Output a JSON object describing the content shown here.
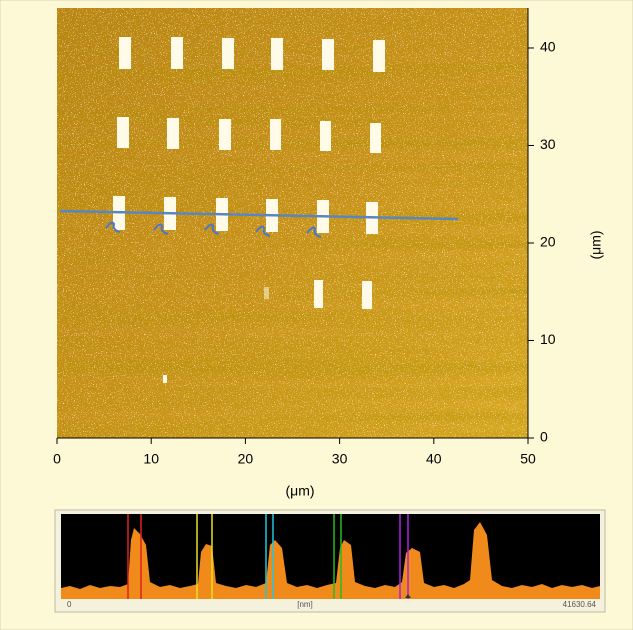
{
  "chart_data": {
    "type": "image",
    "xlabel": "(μm)",
    "ylabel": "(μm)",
    "xlim": [
      0,
      50
    ],
    "xticks": [
      0,
      10,
      20,
      30,
      40,
      50
    ],
    "ylim": [
      0,
      44.1
    ],
    "yticks": [
      0,
      10,
      20,
      30,
      40
    ],
    "profile": {
      "xlabel": "[nm]",
      "xlim": [
        0,
        41630.64
      ]
    }
  }
}
